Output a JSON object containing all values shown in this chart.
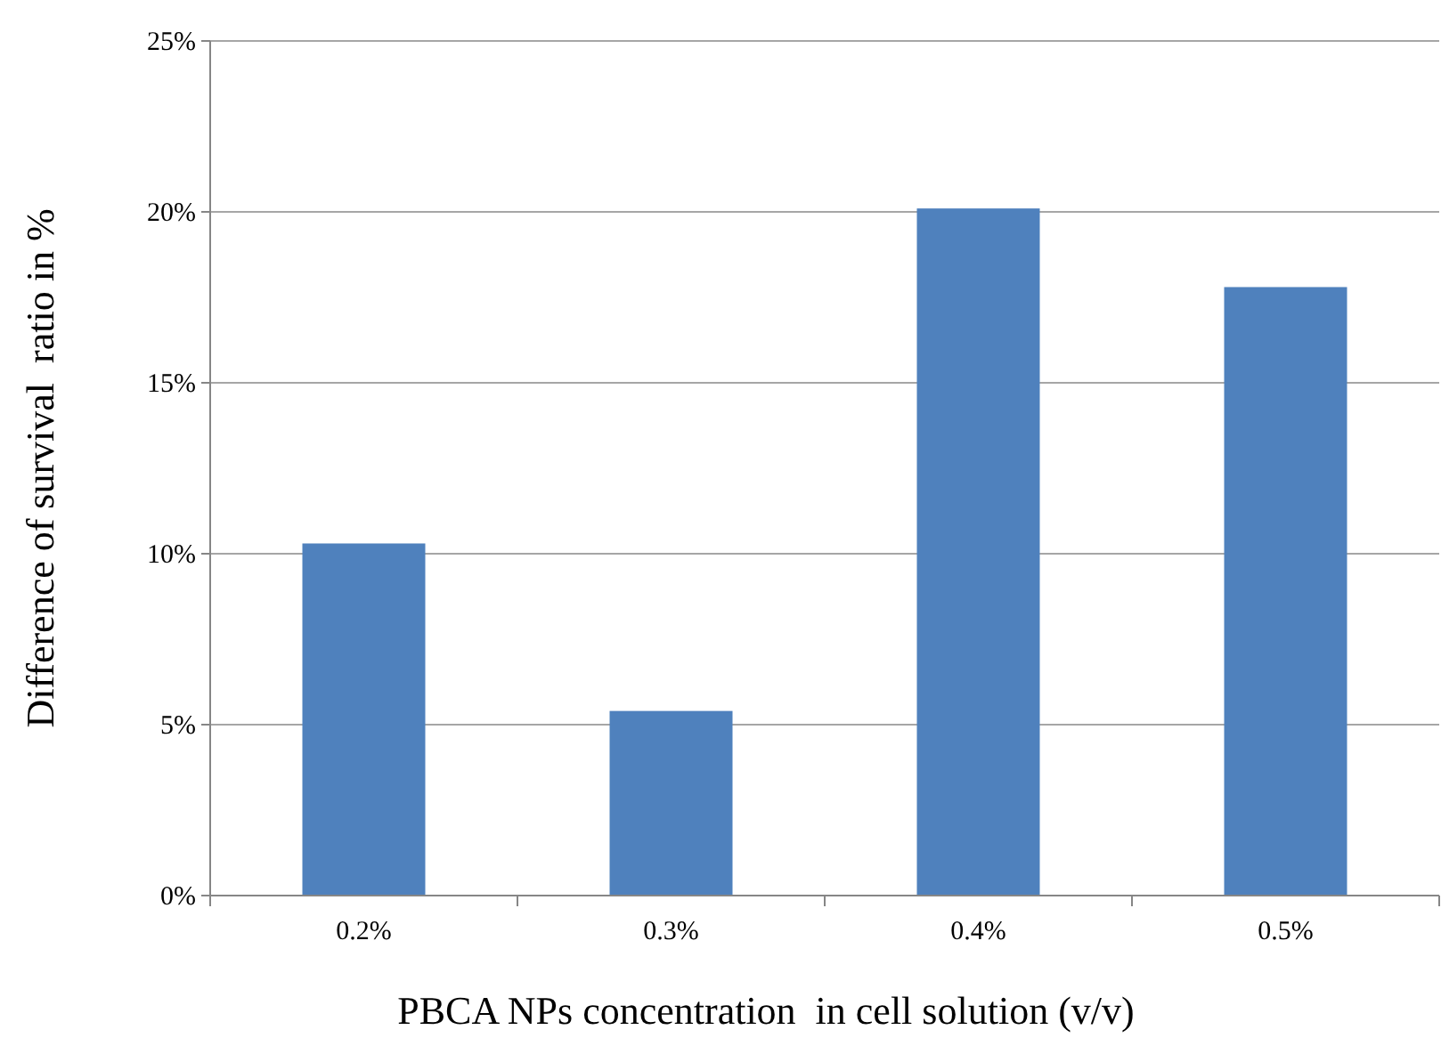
{
  "chart_data": {
    "type": "bar",
    "xlabel": "PBCA NPs concentration  in cell solution (v/v)",
    "ylabel": "Difference of survival  ratio in %",
    "categories": [
      "0.2%",
      "0.3%",
      "0.4%",
      "0.5%"
    ],
    "values": [
      10.3,
      5.4,
      20.1,
      17.8
    ],
    "color": "#4f81bd",
    "ylim": [
      0,
      25
    ],
    "yticks": [
      {
        "value": 0,
        "label": "0%"
      },
      {
        "value": 5,
        "label": "5%"
      },
      {
        "value": 10,
        "label": "10%"
      },
      {
        "value": 15,
        "label": "15%"
      },
      {
        "value": 20,
        "label": "20%"
      },
      {
        "value": 25,
        "label": "25%"
      }
    ],
    "grid": "y"
  }
}
